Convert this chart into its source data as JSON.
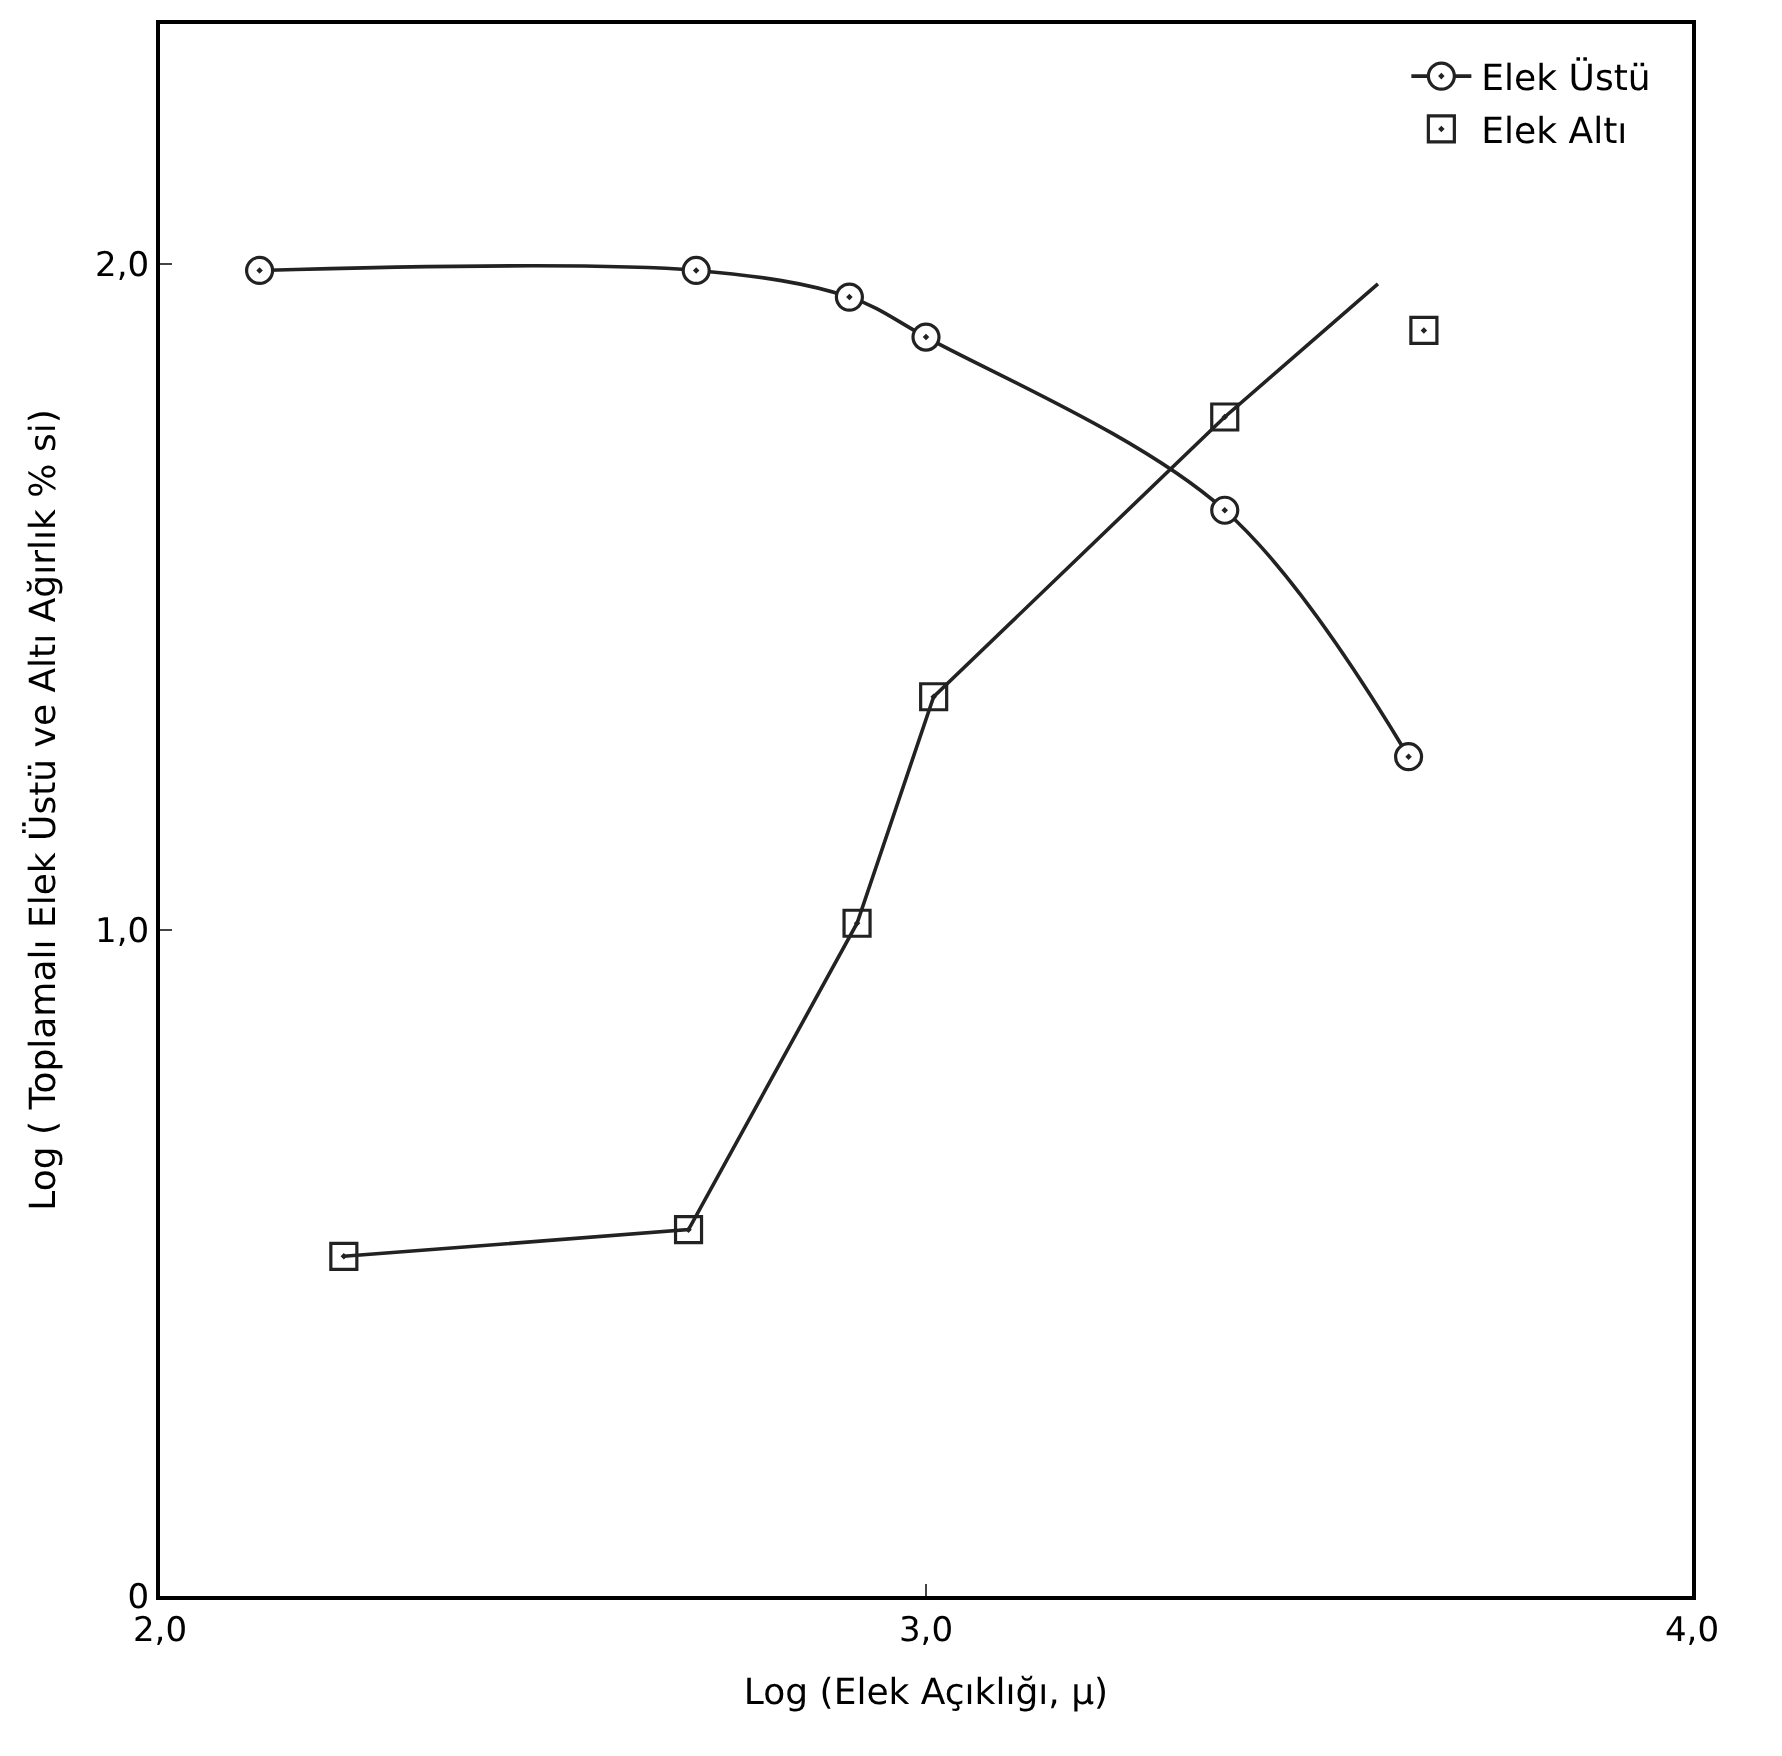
{
  "chart_data": {
    "type": "line",
    "xlabel": "Log (Elek Açıklığı, μ)",
    "ylabel": "Log ( Toplamalı Elek Üstü ve Altı Ağırlık % si)",
    "series": [
      {
        "name": "Elek Üstü",
        "type": "line",
        "color": "#222222",
        "marker": "circle",
        "x": [
          2.13,
          2.7,
          2.9,
          3.0,
          3.39,
          3.63
        ],
        "values": [
          1.99,
          1.99,
          1.95,
          1.89,
          1.63,
          1.26
        ]
      },
      {
        "name": "Elek Altı",
        "type": "scatter",
        "color": "#222222",
        "marker": "square",
        "x": [
          2.24,
          2.69,
          2.91,
          3.01,
          3.39,
          3.65
        ],
        "values": [
          0.51,
          0.55,
          1.01,
          1.35,
          1.77,
          1.9
        ]
      },
      {
        "type": "line",
        "color": "#222222",
        "marker": "none",
        "x": [
          2.24,
          2.69,
          2.91,
          3.01,
          3.39,
          3.59
        ],
        "values": [
          0.51,
          0.55,
          1.01,
          1.35,
          1.77,
          1.97
        ]
      }
    ],
    "xlim": [
      2.0,
      4.0
    ],
    "xticks": [
      {
        "value": 2.0,
        "label": "2,0"
      },
      {
        "value": 3.0,
        "label": "3,0"
      },
      {
        "value": 4.0,
        "label": "4,0"
      }
    ],
    "ylim": [
      0,
      2.36
    ],
    "yticks": [
      0,
      {
        "value": 1.0,
        "label": "1,0"
      },
      {
        "value": 2.0,
        "label": "2,0"
      }
    ],
    "legend": "top right"
  }
}
